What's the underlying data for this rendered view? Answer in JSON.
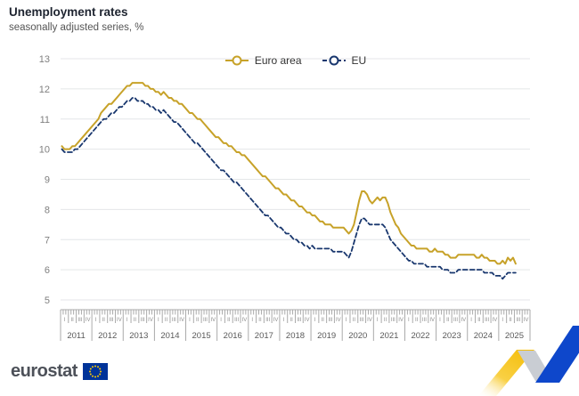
{
  "header": {
    "title": "Unemployment rates",
    "subtitle": "seasonally adjusted series, %"
  },
  "legend": [
    {
      "label": "Euro area",
      "color": "#C7A229",
      "line_style": "solid"
    },
    {
      "label": "EU",
      "color": "#19376E",
      "line_style": "dashed"
    }
  ],
  "footer": {
    "logo_text": "eurostat",
    "flag_color": "#003399",
    "star_color": "#FFCC00"
  },
  "branding": {
    "swoosh_yellow": "#F5BF0E",
    "swoosh_gray": "#C9CDD3",
    "swoosh_blue": "#0E47CB"
  },
  "colors": {
    "grid": "#E4E6E8",
    "axis": "#AAAAAA",
    "y_labels": "#7F7F7F",
    "quarter_labels": "#8C8C8C",
    "year_labels": "#595959"
  },
  "chart_data": {
    "type": "line",
    "title": "Unemployment rates",
    "subtitle": "seasonally adjusted series, %",
    "ylabel": "%",
    "grid": true,
    "legend_position": "top-center",
    "y_axis": {
      "min": 5,
      "max": 13,
      "ticks": [
        5,
        6,
        7,
        8,
        9,
        10,
        11,
        12,
        13
      ]
    },
    "x_axis": {
      "frequency": "monthly",
      "start": "2011-01",
      "end": "2025-07",
      "years": [
        2011,
        2012,
        2013,
        2014,
        2015,
        2016,
        2017,
        2018,
        2019,
        2020,
        2021,
        2022,
        2023,
        2024,
        2025
      ],
      "quarters": [
        "I",
        "II",
        "III",
        "IV"
      ]
    },
    "series": [
      {
        "name": "Euro area",
        "color": "#C7A229",
        "line_style": "solid",
        "values": [
          10.1,
          10.0,
          10.0,
          10.0,
          10.1,
          10.1,
          10.2,
          10.3,
          10.4,
          10.5,
          10.6,
          10.7,
          10.8,
          10.9,
          11.0,
          11.2,
          11.3,
          11.4,
          11.5,
          11.5,
          11.6,
          11.7,
          11.8,
          11.9,
          12.0,
          12.1,
          12.1,
          12.2,
          12.2,
          12.2,
          12.2,
          12.2,
          12.1,
          12.1,
          12.0,
          12.0,
          11.9,
          11.9,
          11.8,
          11.9,
          11.8,
          11.7,
          11.7,
          11.6,
          11.6,
          11.5,
          11.5,
          11.4,
          11.3,
          11.2,
          11.2,
          11.1,
          11.0,
          11.0,
          10.9,
          10.8,
          10.7,
          10.6,
          10.5,
          10.4,
          10.4,
          10.3,
          10.2,
          10.2,
          10.1,
          10.1,
          10.0,
          9.9,
          9.9,
          9.8,
          9.8,
          9.7,
          9.6,
          9.5,
          9.4,
          9.3,
          9.2,
          9.1,
          9.1,
          9.0,
          8.9,
          8.8,
          8.7,
          8.7,
          8.6,
          8.5,
          8.5,
          8.4,
          8.3,
          8.3,
          8.2,
          8.1,
          8.1,
          8.0,
          7.9,
          7.9,
          7.8,
          7.8,
          7.7,
          7.6,
          7.6,
          7.5,
          7.5,
          7.5,
          7.4,
          7.4,
          7.4,
          7.4,
          7.4,
          7.3,
          7.2,
          7.3,
          7.5,
          7.9,
          8.3,
          8.6,
          8.6,
          8.5,
          8.3,
          8.2,
          8.3,
          8.4,
          8.3,
          8.4,
          8.4,
          8.2,
          7.9,
          7.7,
          7.5,
          7.4,
          7.2,
          7.1,
          7.0,
          6.9,
          6.8,
          6.8,
          6.7,
          6.7,
          6.7,
          6.7,
          6.7,
          6.6,
          6.6,
          6.7,
          6.6,
          6.6,
          6.6,
          6.5,
          6.5,
          6.4,
          6.4,
          6.4,
          6.5,
          6.5,
          6.5,
          6.5,
          6.5,
          6.5,
          6.5,
          6.4,
          6.4,
          6.5,
          6.4,
          6.4,
          6.3,
          6.3,
          6.3,
          6.2,
          6.2,
          6.3,
          6.2,
          6.4,
          6.3,
          6.4,
          6.2
        ]
      },
      {
        "name": "EU",
        "color": "#19376E",
        "line_style": "dashed",
        "values": [
          10.0,
          9.9,
          9.9,
          9.9,
          9.9,
          10.0,
          10.0,
          10.1,
          10.2,
          10.3,
          10.4,
          10.5,
          10.6,
          10.7,
          10.8,
          10.9,
          11.0,
          11.0,
          11.1,
          11.2,
          11.2,
          11.3,
          11.4,
          11.4,
          11.5,
          11.6,
          11.6,
          11.7,
          11.7,
          11.6,
          11.6,
          11.6,
          11.5,
          11.5,
          11.4,
          11.4,
          11.3,
          11.3,
          11.2,
          11.3,
          11.2,
          11.1,
          11.0,
          10.9,
          10.9,
          10.8,
          10.7,
          10.6,
          10.5,
          10.4,
          10.3,
          10.2,
          10.2,
          10.1,
          10.0,
          9.9,
          9.8,
          9.7,
          9.6,
          9.5,
          9.4,
          9.3,
          9.3,
          9.2,
          9.1,
          9.0,
          8.9,
          8.9,
          8.8,
          8.7,
          8.6,
          8.5,
          8.4,
          8.3,
          8.2,
          8.1,
          8.0,
          7.9,
          7.8,
          7.8,
          7.7,
          7.6,
          7.5,
          7.4,
          7.4,
          7.3,
          7.2,
          7.2,
          7.1,
          7.0,
          7.0,
          6.9,
          6.9,
          6.8,
          6.8,
          6.7,
          6.8,
          6.7,
          6.7,
          6.7,
          6.7,
          6.7,
          6.7,
          6.7,
          6.6,
          6.6,
          6.6,
          6.6,
          6.6,
          6.5,
          6.4,
          6.6,
          6.9,
          7.2,
          7.5,
          7.7,
          7.7,
          7.6,
          7.5,
          7.5,
          7.5,
          7.5,
          7.5,
          7.5,
          7.4,
          7.2,
          7.0,
          6.9,
          6.8,
          6.7,
          6.6,
          6.5,
          6.4,
          6.3,
          6.3,
          6.2,
          6.2,
          6.2,
          6.2,
          6.2,
          6.1,
          6.1,
          6.1,
          6.1,
          6.1,
          6.1,
          6.0,
          6.0,
          6.0,
          5.9,
          5.9,
          5.9,
          6.0,
          6.0,
          6.0,
          6.0,
          6.0,
          6.0,
          6.0,
          6.0,
          6.0,
          6.0,
          5.9,
          5.9,
          5.9,
          5.9,
          5.8,
          5.8,
          5.8,
          5.7,
          5.8,
          5.9,
          5.9,
          5.9,
          5.9
        ]
      }
    ]
  }
}
